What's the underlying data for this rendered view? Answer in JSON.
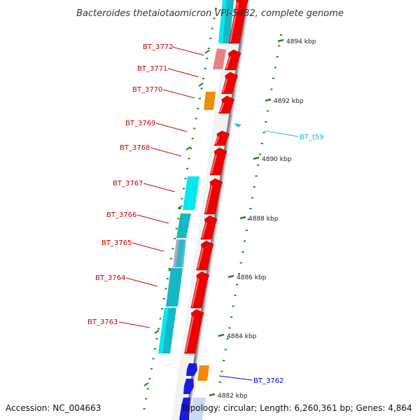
{
  "title": "Bacteroides thetaiotaomicron VPI-5482, complete genome",
  "accession_text": "Accession: NC_004663",
  "summary_text": "Topology: circular; Length: 6,260,361 bp; Genes: 4,864",
  "colors": {
    "label_red": "#cc0000",
    "label_blue": "#0000cc",
    "label_cyan": "#22b4d8",
    "tick_green": "#1c8c1c",
    "backbone": "#8a8a8a",
    "cds": "#ee0000",
    "cyan_bright": "#00e8f0",
    "cyan_dark": "#16b8c4",
    "pink": "#e88080",
    "orange": "#f08c00",
    "lavender": "#a8a8c8",
    "blue": "#1a1ae0",
    "light_blue": "#c8d8f8"
  },
  "scale": {
    "ticks": [
      {
        "label": "4894 kbp"
      },
      {
        "label": "4892 kbp"
      },
      {
        "label": "4890 kbp"
      },
      {
        "label": "4888 kbp"
      },
      {
        "label": "4886 kbp"
      },
      {
        "label": "4884 kbp"
      },
      {
        "label": "4882 kbp"
      }
    ]
  },
  "genes": [
    {
      "name": "BT_3772"
    },
    {
      "name": "BT_3771"
    },
    {
      "name": "BT_3770"
    },
    {
      "name": "BT_3769"
    },
    {
      "name": "BT_3768"
    },
    {
      "name": "BT_3767"
    },
    {
      "name": "BT_3766"
    },
    {
      "name": "BT_3765"
    },
    {
      "name": "BT_3764"
    },
    {
      "name": "BT_3763"
    },
    {
      "name": "BT_t59"
    },
    {
      "name": "BT_3762"
    }
  ]
}
